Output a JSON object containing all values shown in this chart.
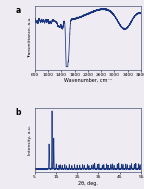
{
  "fig_width": 1.44,
  "fig_height": 1.89,
  "dpi": 100,
  "background_color": "#eeecf2",
  "line_color": "#1a3580",
  "panel_a": {
    "label": "a",
    "xlabel": "Wavenumber, cm⁻¹",
    "ylabel": "Transmittance, a.u.",
    "xlim": [
      600,
      3800
    ],
    "xticks": [
      600,
      1000,
      1400,
      1800,
      2200,
      2600,
      3000,
      3400,
      3800
    ],
    "xticklabels": [
      "600",
      "1000",
      "1400",
      "1800",
      "2200",
      "2600",
      "3000",
      "3400",
      "3800"
    ],
    "ylim_auto": true
  },
  "panel_b": {
    "label": "b",
    "xlabel": "2θ, deg.",
    "ylabel": "Intensity, a.u.",
    "xlim": [
      5,
      55
    ],
    "xticks": [
      5,
      15,
      25,
      35,
      45,
      55
    ],
    "xticklabels": [
      "5",
      "15",
      "25",
      "35",
      "45",
      "55"
    ],
    "ylim_auto": true
  }
}
